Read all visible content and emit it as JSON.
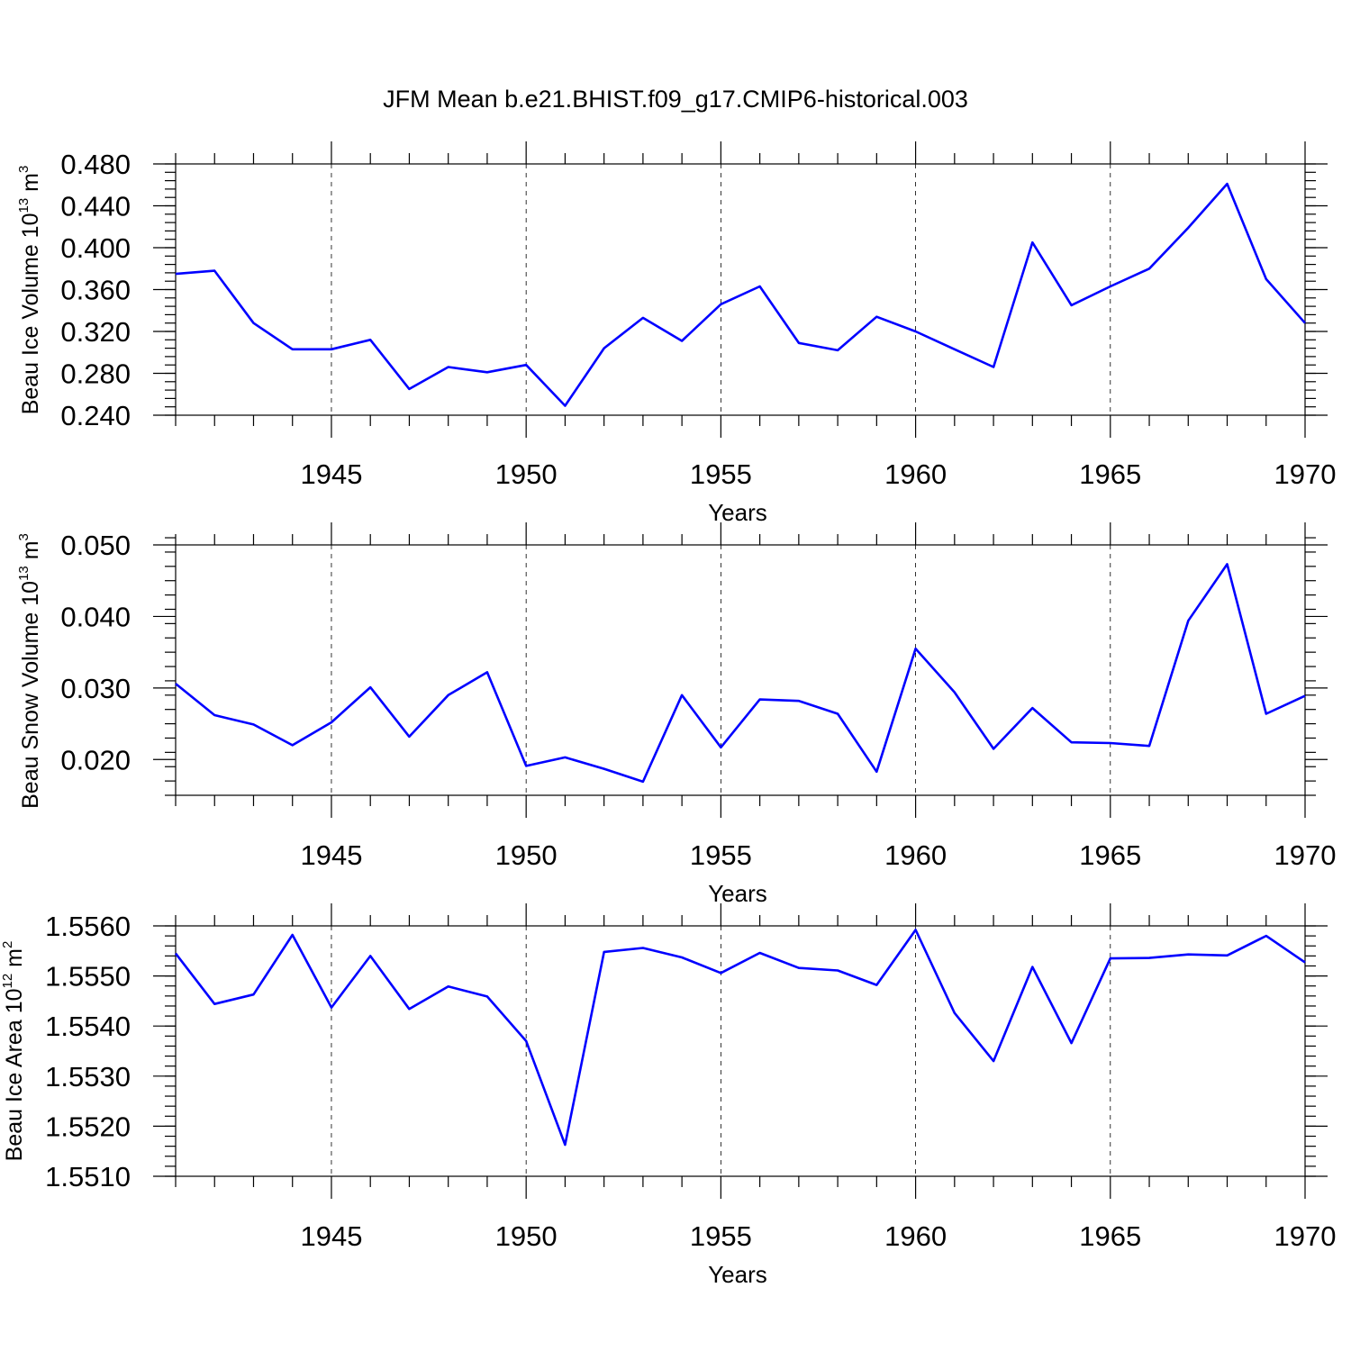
{
  "title": "JFM Mean b.e21.BHIST.f09_g17.CMIP6-historical.003",
  "colors": {
    "series": "#0000ff",
    "axis": "#000000",
    "background": "#ffffff"
  },
  "chart_data": [
    {
      "type": "line",
      "ylabel_prefix": "Beau Ice Volume 10",
      "ylabel_exp": "13",
      "ylabel_unit": " m",
      "ylabel_unit_exp": "3",
      "xlabel": "Years",
      "xlim": [
        1941,
        1970
      ],
      "ylim": [
        0.24,
        0.48
      ],
      "yticks": [
        "0.240",
        "0.280",
        "0.320",
        "0.360",
        "0.400",
        "0.440",
        "0.480"
      ],
      "xticks": [
        "1945",
        "1950",
        "1955",
        "1960",
        "1965",
        "1970"
      ],
      "grid": "dashed vertical at major x ticks",
      "x": [
        1941,
        1942,
        1943,
        1944,
        1945,
        1946,
        1947,
        1948,
        1949,
        1950,
        1951,
        1952,
        1953,
        1954,
        1955,
        1956,
        1957,
        1958,
        1959,
        1960,
        1961,
        1962,
        1963,
        1964,
        1965,
        1966,
        1967,
        1968,
        1969,
        1970
      ],
      "values": [
        0.375,
        0.378,
        0.328,
        0.303,
        0.303,
        0.312,
        0.265,
        0.286,
        0.281,
        0.288,
        0.249,
        0.304,
        0.333,
        0.311,
        0.346,
        0.363,
        0.309,
        0.302,
        0.334,
        0.32,
        0.303,
        0.286,
        0.405,
        0.345,
        0.363,
        0.38,
        0.419,
        0.461,
        0.37,
        0.328
      ]
    },
    {
      "type": "line",
      "ylabel_prefix": "Beau Snow Volume 10",
      "ylabel_exp": "13",
      "ylabel_unit": " m",
      "ylabel_unit_exp": "3",
      "xlabel": "Years",
      "xlim": [
        1941,
        1970
      ],
      "ylim": [
        0.015,
        0.05
      ],
      "yticks": [
        "0.020",
        "0.030",
        "0.040",
        "0.050"
      ],
      "xticks": [
        "1945",
        "1950",
        "1955",
        "1960",
        "1965",
        "1970"
      ],
      "grid": "dashed vertical at major x ticks",
      "x": [
        1941,
        1942,
        1943,
        1944,
        1945,
        1946,
        1947,
        1948,
        1949,
        1950,
        1951,
        1952,
        1953,
        1954,
        1955,
        1956,
        1957,
        1958,
        1959,
        1960,
        1961,
        1962,
        1963,
        1964,
        1965,
        1966,
        1967,
        1968,
        1969,
        1970
      ],
      "values": [
        0.0306,
        0.0262,
        0.0249,
        0.022,
        0.0252,
        0.0301,
        0.0232,
        0.029,
        0.0322,
        0.0191,
        0.0203,
        0.0187,
        0.0169,
        0.029,
        0.0217,
        0.0284,
        0.0282,
        0.0264,
        0.0183,
        0.0355,
        0.0294,
        0.0215,
        0.0272,
        0.0224,
        0.0223,
        0.0219,
        0.0394,
        0.0473,
        0.0264,
        0.0289
      ]
    },
    {
      "type": "line",
      "ylabel_prefix": "Beau Ice Area 10",
      "ylabel_exp": "12",
      "ylabel_unit": " m",
      "ylabel_unit_exp": "2",
      "xlabel": "Years",
      "xlim": [
        1941,
        1970
      ],
      "ylim": [
        1.551,
        1.556
      ],
      "yticks": [
        "1.5510",
        "1.5520",
        "1.5530",
        "1.5540",
        "1.5550",
        "1.5560"
      ],
      "xticks": [
        "1945",
        "1950",
        "1955",
        "1960",
        "1965",
        "1970"
      ],
      "grid": "dashed vertical at major x ticks",
      "x": [
        1941,
        1942,
        1943,
        1944,
        1945,
        1946,
        1947,
        1948,
        1949,
        1950,
        1951,
        1952,
        1953,
        1954,
        1955,
        1956,
        1957,
        1958,
        1959,
        1960,
        1961,
        1962,
        1963,
        1964,
        1965,
        1966,
        1967,
        1968,
        1969,
        1970
      ],
      "values": [
        1.55545,
        1.55444,
        1.55463,
        1.55582,
        1.55437,
        1.5554,
        1.55434,
        1.55479,
        1.55459,
        1.5537,
        1.55163,
        1.55548,
        1.55556,
        1.55537,
        1.55506,
        1.55546,
        1.55516,
        1.55511,
        1.55482,
        1.55592,
        1.55426,
        1.5533,
        1.55518,
        1.55366,
        1.55535,
        1.55536,
        1.55543,
        1.55541,
        1.5558,
        1.55527
      ]
    }
  ]
}
